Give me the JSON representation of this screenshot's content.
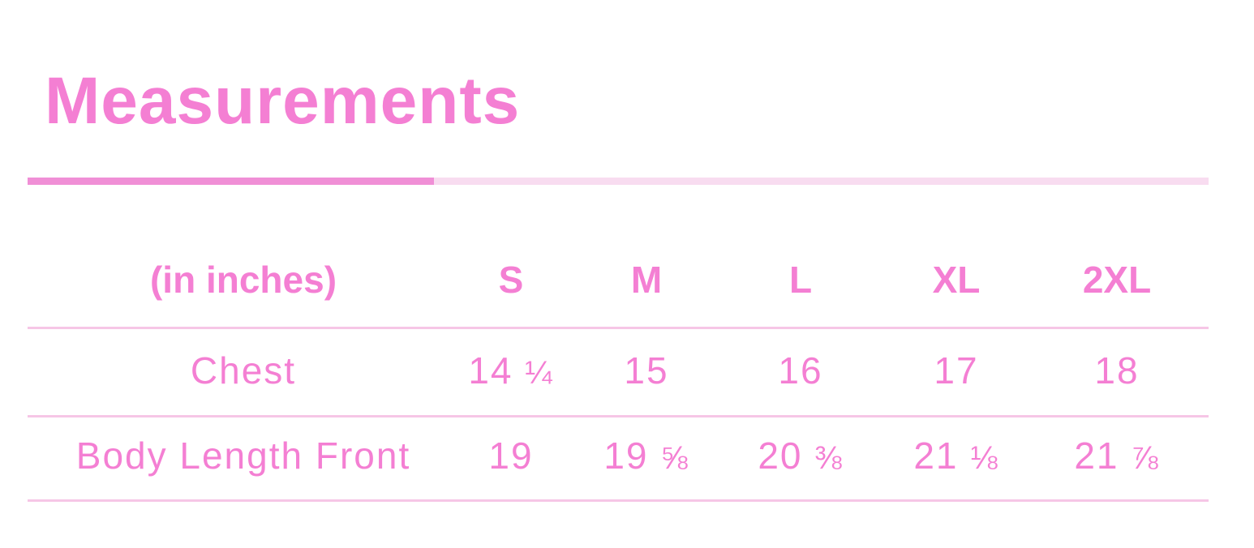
{
  "title": "Measurements",
  "progress": 0.344,
  "colors": {
    "accent": "#f47fd3",
    "divider": "#f6c6e6",
    "bar_fill": "#f08fd6",
    "bar_track": "#f8dcf0"
  },
  "table": {
    "headers": [
      "(in inches)",
      "S",
      "M",
      "L",
      "XL",
      "2XL"
    ],
    "rows": [
      {
        "label": "Chest",
        "values": [
          {
            "whole": "14",
            "frac": "¼"
          },
          {
            "whole": "15",
            "frac": ""
          },
          {
            "whole": "16",
            "frac": ""
          },
          {
            "whole": "17",
            "frac": ""
          },
          {
            "whole": "18",
            "frac": ""
          }
        ]
      },
      {
        "label": "Body Length Front",
        "values": [
          {
            "whole": "19",
            "frac": ""
          },
          {
            "whole": "19",
            "frac": "⅝"
          },
          {
            "whole": "20",
            "frac": "⅜"
          },
          {
            "whole": "21",
            "frac": "⅛"
          },
          {
            "whole": "21",
            "frac": "⅞"
          }
        ]
      }
    ]
  }
}
